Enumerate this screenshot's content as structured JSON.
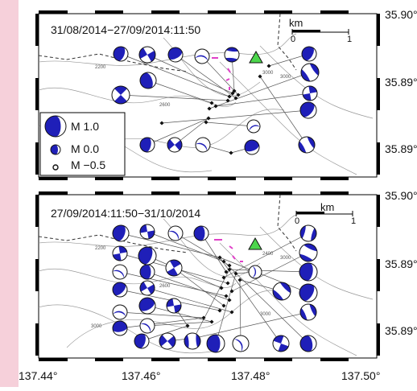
{
  "frame_color": "#f6d0da",
  "colors": {
    "beachball": "#1f1fb8",
    "station": "#4cd64c",
    "hotspot": "#e040c8",
    "contour": "#9a9a9a",
    "fault": "#333333"
  },
  "axes": {
    "x_ticks": [
      "137.44°",
      "137.46°",
      "137.48°",
      "137.50°"
    ],
    "y_ticks_top": [
      "35.90°",
      "35.89°",
      "35.89°"
    ],
    "y_ticks_bottom": [
      "35.90°",
      "35.89°",
      "35.89°"
    ]
  },
  "panels": [
    {
      "period": "31/08/2014−27/09/2014:11:50",
      "scale": {
        "unit": "km",
        "start": "0",
        "end": "1"
      },
      "contours": [
        "2200",
        "2600",
        "3000",
        "3000"
      ],
      "legend": [
        {
          "magnitude": "M 1.0"
        },
        {
          "magnitude": "M 0.0"
        },
        {
          "magnitude": "M −0.5"
        }
      ]
    },
    {
      "period": "27/09/2014:11:50−31/10/2014",
      "scale": {
        "unit": "km",
        "start": "0",
        "end": "1"
      },
      "contours": [
        "2200",
        "2600",
        "2400",
        "3000",
        "3000",
        "3000"
      ]
    }
  ]
}
